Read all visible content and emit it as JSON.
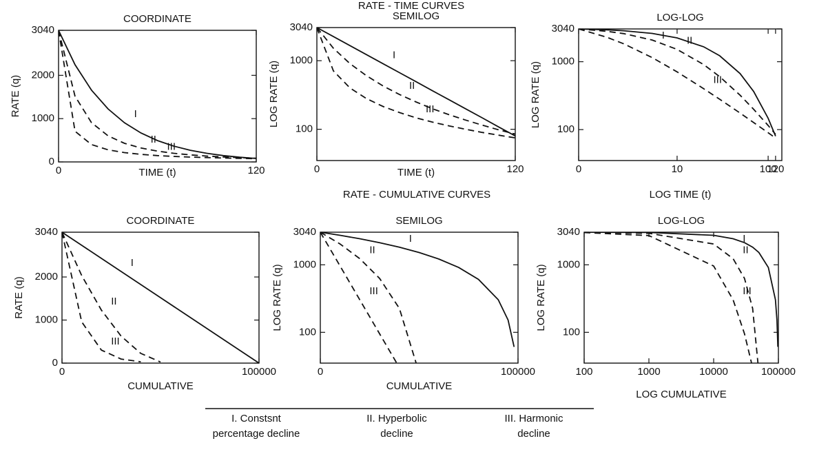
{
  "headings": [
    "RATE - TIME CURVES",
    "RATE - CUMULATIVE CURVES"
  ],
  "legend_notes": [
    [
      "I. Constsnt",
      "percentage decline"
    ],
    [
      "II. Hyperbolic",
      "decline"
    ],
    [
      "III. Harmonic",
      "decline"
    ]
  ],
  "chart_data": [
    {
      "type": "line",
      "title": "COORDINATE",
      "xlabel": "TIME (t)",
      "ylabel": "RATE (q)",
      "x": [
        0,
        10,
        20,
        30,
        40,
        50,
        60,
        70,
        80,
        90,
        100,
        110,
        120
      ],
      "series": [
        {
          "name": "I",
          "color": "#111111",
          "style": "solid",
          "values": [
            3040,
            2245,
            1658,
            1225,
            904,
            668,
            493,
            364,
            269,
            199,
            147,
            108,
            80
          ]
        },
        {
          "name": "II",
          "color": "#111111",
          "style": "dashed",
          "values": [
            3040,
            1518,
            907,
            603,
            429,
            321,
            250,
            199,
            163,
            136,
            115,
            98,
            85
          ]
        },
        {
          "name": "III",
          "color": "#111111",
          "style": "dashed",
          "values": [
            3040,
            709,
            401,
            280,
            215,
            175,
            147,
            127,
            112,
            100,
            90,
            82,
            75
          ]
        }
      ],
      "xscale": "linear",
      "yscale": "linear",
      "xlim": [
        0,
        120
      ],
      "ylim": [
        0,
        3040
      ],
      "xticks": [
        0,
        120
      ],
      "yticks": [
        0,
        1000,
        2000,
        3040
      ]
    },
    {
      "type": "line",
      "title": "SEMILOG",
      "xlabel": "TIME (t)",
      "ylabel": "LOG RATE (q)",
      "x": [
        0,
        10,
        20,
        30,
        40,
        50,
        60,
        70,
        80,
        90,
        100,
        110,
        120
      ],
      "series": [
        {
          "name": "I",
          "color": "#111111",
          "style": "solid",
          "values": [
            3040,
            2245,
            1658,
            1225,
            904,
            668,
            493,
            364,
            269,
            199,
            147,
            108,
            80
          ]
        },
        {
          "name": "II",
          "color": "#111111",
          "style": "dashed",
          "values": [
            3040,
            1518,
            907,
            603,
            429,
            321,
            250,
            199,
            163,
            136,
            115,
            98,
            85
          ]
        },
        {
          "name": "III",
          "color": "#111111",
          "style": "dashed",
          "values": [
            3040,
            709,
            401,
            280,
            215,
            175,
            147,
            127,
            112,
            100,
            90,
            82,
            75
          ]
        }
      ],
      "xscale": "linear",
      "yscale": "log",
      "xlim": [
        0,
        120
      ],
      "ylim": [
        35,
        3040
      ],
      "xticks": [
        0,
        120
      ],
      "yticks": [
        100,
        1000,
        3040
      ]
    },
    {
      "type": "line",
      "title": "LOG-LOG",
      "xlabel": "LOG TIME (t)",
      "ylabel": "LOG RATE (q)",
      "x": [
        0,
        1,
        2,
        5,
        10,
        20,
        30,
        50,
        70,
        100,
        120
      ],
      "series": [
        {
          "name": "I",
          "color": "#111111",
          "style": "solid",
          "values": [
            3040,
            2949,
            2861,
            2613,
            2245,
            1658,
            1225,
            668,
            364,
            147,
            80
          ]
        },
        {
          "name": "II",
          "color": "#111111",
          "style": "dashed",
          "values": [
            3040,
            2802,
            2592,
            2085,
            1518,
            907,
            603,
            321,
            199,
            115,
            85
          ]
        },
        {
          "name": "III",
          "color": "#111111",
          "style": "dashed",
          "values": [
            3040,
            2287,
            1834,
            1149,
            709,
            401,
            280,
            175,
            127,
            90,
            75
          ]
        }
      ],
      "xscale": "log1p",
      "yscale": "log",
      "xlim": [
        0,
        140
      ],
      "ylim": [
        35,
        3040
      ],
      "xticks": [
        0,
        10,
        100,
        120
      ],
      "yticks": [
        100,
        1000,
        3040
      ]
    },
    {
      "type": "line",
      "title": "COORDINATE",
      "xlabel": "CUMULATIVE",
      "ylabel": "RATE (q)",
      "x": [
        0,
        10000,
        20000,
        30000,
        40000,
        50000,
        60000,
        70000,
        80000,
        90000,
        100000
      ],
      "series": [
        {
          "name": "I",
          "color": "#111111",
          "style": "solid",
          "values": [
            3040,
            2736,
            2432,
            2128,
            1824,
            1520,
            1216,
            912,
            608,
            304,
            0
          ]
        },
        {
          "name": "II",
          "color": "#111111",
          "style": "dashed",
          "values": [
            3040,
            2034,
            1231,
            628,
            226,
            25,
            null,
            null,
            null,
            null,
            null
          ]
        },
        {
          "name": "III",
          "color": "#111111",
          "style": "dashed",
          "values": [
            3040,
            958,
            302,
            95,
            30,
            null,
            null,
            null,
            null,
            null,
            null
          ]
        }
      ],
      "xscale": "linear",
      "yscale": "linear",
      "xlim": [
        0,
        100000
      ],
      "ylim": [
        0,
        3040
      ],
      "xticks": [
        0,
        100000
      ],
      "yticks": [
        0,
        1000,
        2000,
        3040
      ]
    },
    {
      "type": "line",
      "title": "SEMILOG",
      "xlabel": "CUMULATIVE",
      "ylabel": "LOG RATE (q)",
      "x": [
        0,
        10000,
        20000,
        30000,
        40000,
        50000,
        60000,
        70000,
        80000,
        90000,
        95000,
        98000
      ],
      "series": [
        {
          "name": "I",
          "color": "#111111",
          "style": "solid",
          "values": [
            3040,
            2736,
            2432,
            2128,
            1824,
            1520,
            1216,
            912,
            608,
            304,
            152,
            61
          ]
        },
        {
          "name": "II",
          "color": "#111111",
          "style": "dashed",
          "values": [
            3040,
            2034,
            1231,
            628,
            226,
            25,
            null,
            null,
            null,
            null,
            null,
            null
          ]
        },
        {
          "name": "III",
          "color": "#111111",
          "style": "dashed",
          "values": [
            3040,
            958,
            302,
            95,
            30,
            null,
            null,
            null,
            null,
            null,
            null,
            null
          ]
        }
      ],
      "xscale": "linear",
      "yscale": "log",
      "xlim": [
        0,
        100000
      ],
      "ylim": [
        35,
        3040
      ],
      "xticks": [
        0,
        100000
      ],
      "yticks": [
        100,
        1000,
        3040
      ]
    },
    {
      "type": "line",
      "title": "LOG-LOG",
      "xlabel": "LOG CUMULATIVE",
      "ylabel": "LOG RATE (q)",
      "x": [
        100,
        1000,
        10000,
        20000,
        30000,
        40000,
        50000,
        70000,
        90000,
        95000,
        98000
      ],
      "series": [
        {
          "name": "I",
          "color": "#111111",
          "style": "solid",
          "values": [
            3037,
            3010,
            2736,
            2432,
            2128,
            1824,
            1520,
            912,
            304,
            152,
            61
          ]
        },
        {
          "name": "II",
          "color": "#111111",
          "style": "dashed",
          "values": [
            3029,
            2930,
            2034,
            1231,
            628,
            226,
            25,
            null,
            null,
            null,
            null
          ]
        },
        {
          "name": "III",
          "color": "#111111",
          "style": "dashed",
          "values": [
            3005,
            2708,
            958,
            302,
            95,
            30,
            null,
            null,
            null,
            null,
            null
          ]
        }
      ],
      "xscale": "log",
      "yscale": "log",
      "xlim": [
        100,
        100000
      ],
      "ylim": [
        35,
        3040
      ],
      "xticks": [
        100,
        1000,
        10000,
        100000
      ],
      "yticks": [
        100,
        1000,
        3040
      ]
    }
  ]
}
